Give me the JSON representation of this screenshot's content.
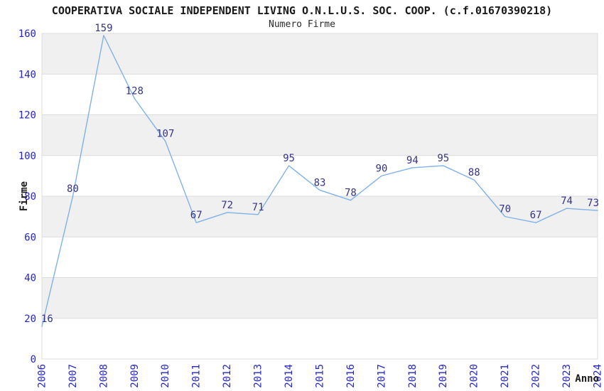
{
  "chart_data": {
    "type": "line",
    "title": "COOPERATIVA SOCIALE INDEPENDENT LIVING O.N.L.U.S. SOC. COOP. (c.f.01670390218)",
    "subtitle": "Numero Firme",
    "xlabel": "Anno",
    "ylabel": "Firme",
    "categories": [
      "2006",
      "2007",
      "2008",
      "2009",
      "2010",
      "2011",
      "2012",
      "2013",
      "2014",
      "2015",
      "2016",
      "2017",
      "2018",
      "2019",
      "2020",
      "2021",
      "2022",
      "2023",
      "2024"
    ],
    "values": [
      16,
      80,
      159,
      128,
      107,
      67,
      72,
      71,
      95,
      83,
      78,
      90,
      94,
      95,
      88,
      70,
      67,
      74,
      73
    ],
    "ylim": [
      0,
      160
    ],
    "ytick_step": 20,
    "yticks": [
      0,
      20,
      40,
      60,
      80,
      100,
      120,
      140,
      160
    ],
    "grid": "horizontal-lines-with-alternating-bands",
    "legend_position": "none",
    "data_labels_shown": true,
    "colors": {
      "line": "#7fb2e8",
      "tick_label": "#2424cf",
      "data_label": "#333388",
      "band_fill": "#f0f0f0",
      "grid_line": "#dcdcdc",
      "axis_text": "#1a1a1a",
      "background": "#ffffff"
    }
  }
}
